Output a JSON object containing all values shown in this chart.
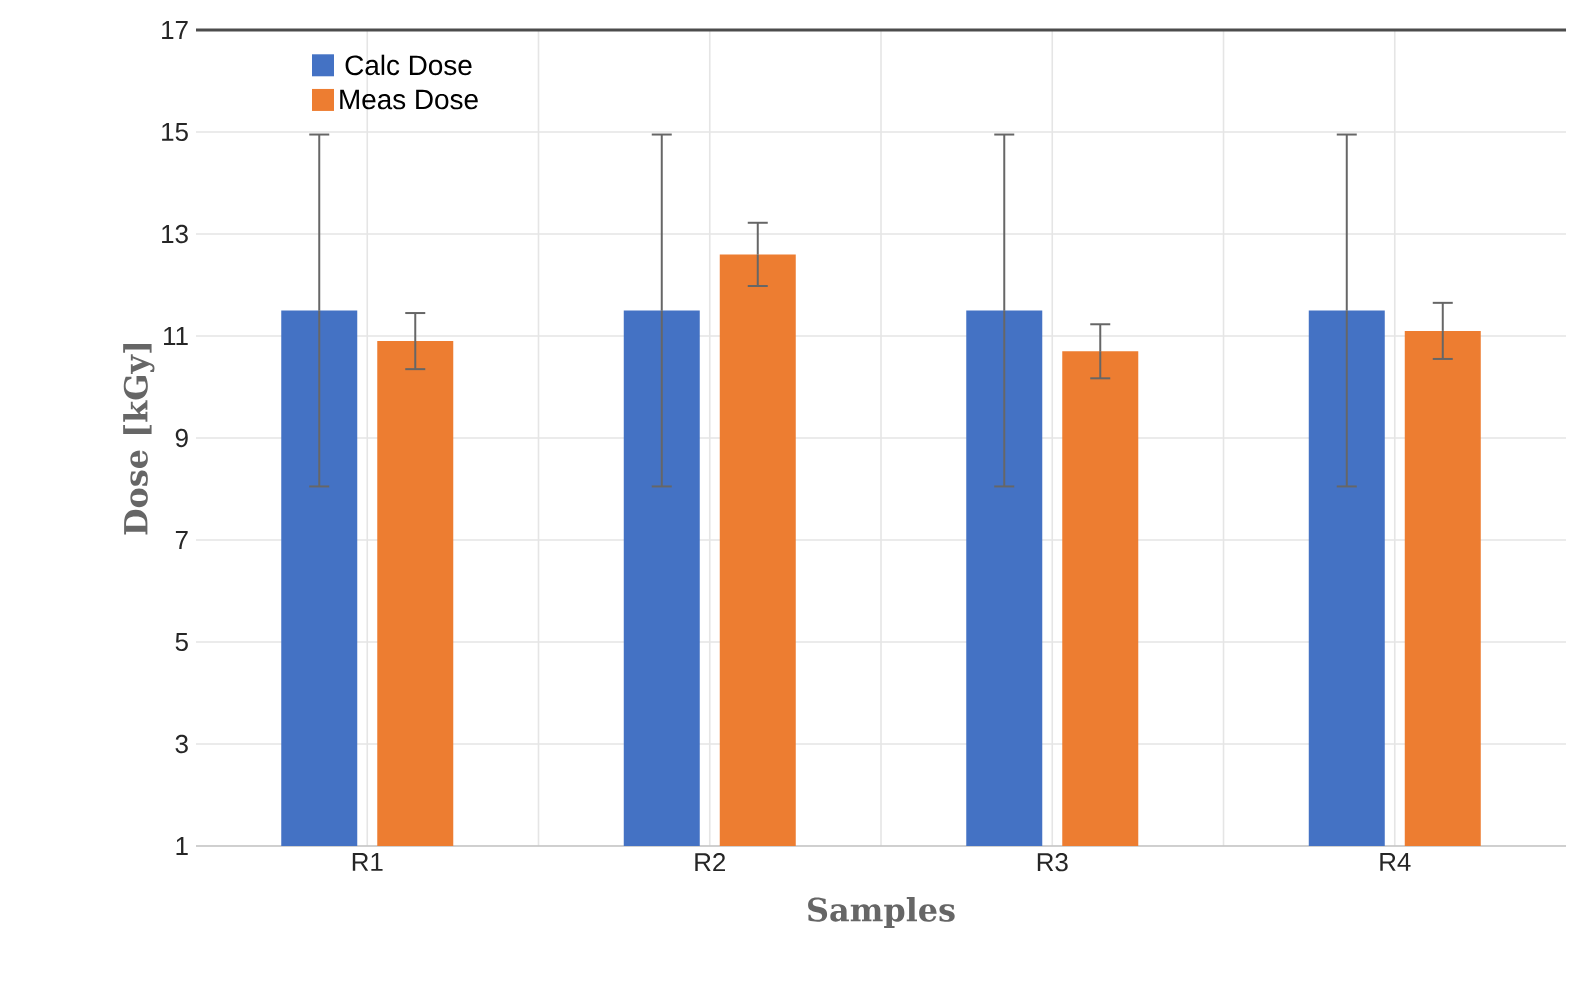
{
  "chart_data": {
    "type": "bar",
    "xlabel": "Samples",
    "ylabel": "Dose [kGy]",
    "categories": [
      "R1",
      "R2",
      "R3",
      "R4"
    ],
    "series": [
      {
        "name": "Calc Dose",
        "color": "#4472c4",
        "values": [
          11.5,
          11.5,
          11.5,
          11.5
        ],
        "errors": [
          3.45,
          3.45,
          3.45,
          3.45
        ]
      },
      {
        "name": "Meas Dose",
        "color": "#ed7d31",
        "values": [
          10.9,
          12.6,
          10.7,
          11.1
        ],
        "errors": [
          0.55,
          0.62,
          0.53,
          0.55
        ]
      }
    ],
    "ylim": [
      1,
      17
    ],
    "yticks": [
      1,
      3,
      5,
      7,
      9,
      11,
      13,
      15,
      17
    ],
    "grid": true,
    "legend": "top left"
  }
}
